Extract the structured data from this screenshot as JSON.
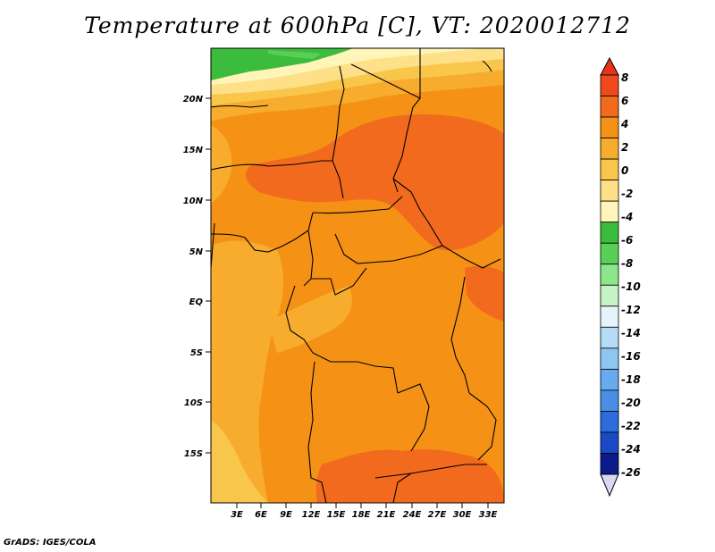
{
  "title": "Temperature at 600hPa [C], VT: 2020012712",
  "credit": "GrADS: IGES/COLA",
  "map": {
    "lat_labels": [
      "20N",
      "15N",
      "10N",
      "5N",
      "EQ",
      "5S",
      "10S",
      "15S"
    ],
    "lon_labels": [
      "3E",
      "6E",
      "9E",
      "12E",
      "15E",
      "18E",
      "21E",
      "24E",
      "27E",
      "30E",
      "33E"
    ]
  },
  "colorbar": {
    "labels": [
      "8",
      "6",
      "4",
      "2",
      "0",
      "-2",
      "-4",
      "-6",
      "-8",
      "-10",
      "-12",
      "-14",
      "-16",
      "-18",
      "-20",
      "-22",
      "-24",
      "-26"
    ],
    "colors": {
      "top_arrow": "#e8341c",
      "bands": [
        "#f04a1c",
        "#f26a1e",
        "#f59216",
        "#f7ac2e",
        "#f9c64c",
        "#fde088",
        "#fff5b8",
        "#3cbc3c",
        "#58d058",
        "#8ce68c",
        "#c6f2c6",
        "#e4f4f8",
        "#b4dcf6",
        "#8ec6f2",
        "#68aaee",
        "#4a8ee6",
        "#2c6cdc",
        "#1a4ac4",
        "#0c1a8a"
      ],
      "bottom_arrow": "#d8d8f0"
    }
  },
  "field_colors": {
    "warmest": "#f26a1e",
    "warm": "#f59216",
    "mild": "#f7ac2e",
    "cool": "#f9c64c",
    "cooler": "#fde088",
    "coolest": "#fff5b8",
    "green": "#3cbc3c",
    "light_green": "#58d058",
    "border": "#000000"
  }
}
